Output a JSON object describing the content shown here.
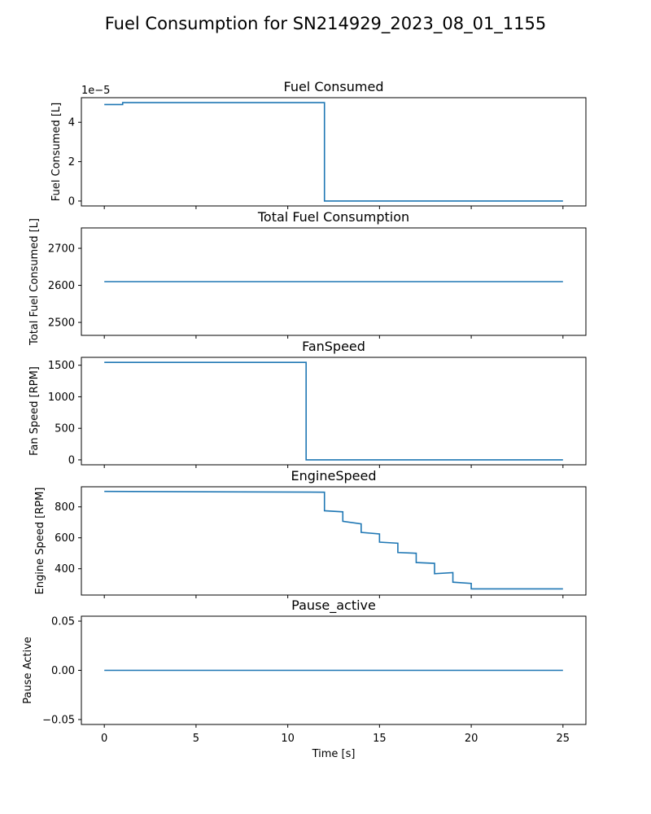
{
  "figure": {
    "title": "Fuel Consumption for SN214929_2023_08_01_1155"
  },
  "colors": {
    "line": "#1f77b4",
    "axes": "#000000"
  },
  "chart_data": [
    {
      "type": "line",
      "title": "Fuel Consumed",
      "ylabel": "Fuel Consumed [L]",
      "xlabel": "",
      "offset_text": "1e−5",
      "xlim": [
        -1.25,
        26.25
      ],
      "ylim": [
        -0.25,
        5.25
      ],
      "yticks": [
        0,
        2,
        4
      ],
      "ytick_labels": [
        "0",
        "2",
        "4"
      ],
      "xticks": [
        0,
        5,
        10,
        15,
        20,
        25
      ],
      "show_xtick_labels": false,
      "step": "post",
      "x": [
        0,
        1,
        12,
        25
      ],
      "y": [
        4.9,
        5.0,
        0.0,
        0.0
      ]
    },
    {
      "type": "line",
      "title": "Total Fuel Consumption",
      "ylabel": "Total Fuel Consumed [L]",
      "xlabel": "",
      "xlim": [
        -1.25,
        26.25
      ],
      "ylim": [
        2465,
        2755
      ],
      "yticks": [
        2500,
        2600,
        2700
      ],
      "ytick_labels": [
        "2500",
        "2600",
        "2700"
      ],
      "xticks": [
        0,
        5,
        10,
        15,
        20,
        25
      ],
      "show_xtick_labels": false,
      "step": "post",
      "x": [
        0,
        25
      ],
      "y": [
        2610,
        2610
      ]
    },
    {
      "type": "line",
      "title": "FanSpeed",
      "ylabel": "Fan Speed [RPM]",
      "xlabel": "",
      "xlim": [
        -1.25,
        26.25
      ],
      "ylim": [
        -78,
        1625
      ],
      "yticks": [
        0,
        500,
        1000,
        1500
      ],
      "ytick_labels": [
        "0",
        "500",
        "1000",
        "1500"
      ],
      "xticks": [
        0,
        5,
        10,
        15,
        20,
        25
      ],
      "show_xtick_labels": false,
      "step": "post",
      "x": [
        0,
        11,
        25
      ],
      "y": [
        1545,
        0,
        0
      ]
    },
    {
      "type": "line",
      "title": "EngineSpeed",
      "ylabel": "Engine Speed [RPM]",
      "xlabel": "",
      "xlim": [
        -1.25,
        26.25
      ],
      "ylim": [
        230,
        930
      ],
      "yticks": [
        400,
        600,
        800
      ],
      "ytick_labels": [
        "400",
        "600",
        "800"
      ],
      "xticks": [
        0,
        5,
        10,
        15,
        20,
        25
      ],
      "show_xtick_labels": false,
      "step": "ramp",
      "segments": [
        {
          "x": [
            0,
            12
          ],
          "y": [
            900,
            895
          ]
        },
        {
          "x": [
            12,
            13
          ],
          "y": [
            775,
            768
          ]
        },
        {
          "x": [
            13,
            14
          ],
          "y": [
            707,
            690
          ]
        },
        {
          "x": [
            14,
            15
          ],
          "y": [
            635,
            625
          ]
        },
        {
          "x": [
            15,
            16
          ],
          "y": [
            572,
            565
          ]
        },
        {
          "x": [
            16,
            17
          ],
          "y": [
            505,
            500
          ]
        },
        {
          "x": [
            17,
            18
          ],
          "y": [
            440,
            435
          ]
        },
        {
          "x": [
            18,
            19
          ],
          "y": [
            368,
            375
          ]
        },
        {
          "x": [
            19,
            20
          ],
          "y": [
            313,
            305
          ]
        },
        {
          "x": [
            20,
            25
          ],
          "y": [
            270,
            270
          ]
        }
      ]
    },
    {
      "type": "line",
      "title": "Pause_active",
      "ylabel": "Pause Active",
      "xlabel": "Time [s]",
      "xlim": [
        -1.25,
        26.25
      ],
      "ylim": [
        -0.055,
        0.055
      ],
      "yticks": [
        -0.05,
        0.0,
        0.05
      ],
      "ytick_labels": [
        "−0.05",
        "0.00",
        "0.05"
      ],
      "xticks": [
        0,
        5,
        10,
        15,
        20,
        25
      ],
      "xtick_labels": [
        "0",
        "5",
        "10",
        "15",
        "20",
        "25"
      ],
      "show_xtick_labels": true,
      "step": "post",
      "x": [
        0,
        25
      ],
      "y": [
        0,
        0
      ]
    }
  ]
}
